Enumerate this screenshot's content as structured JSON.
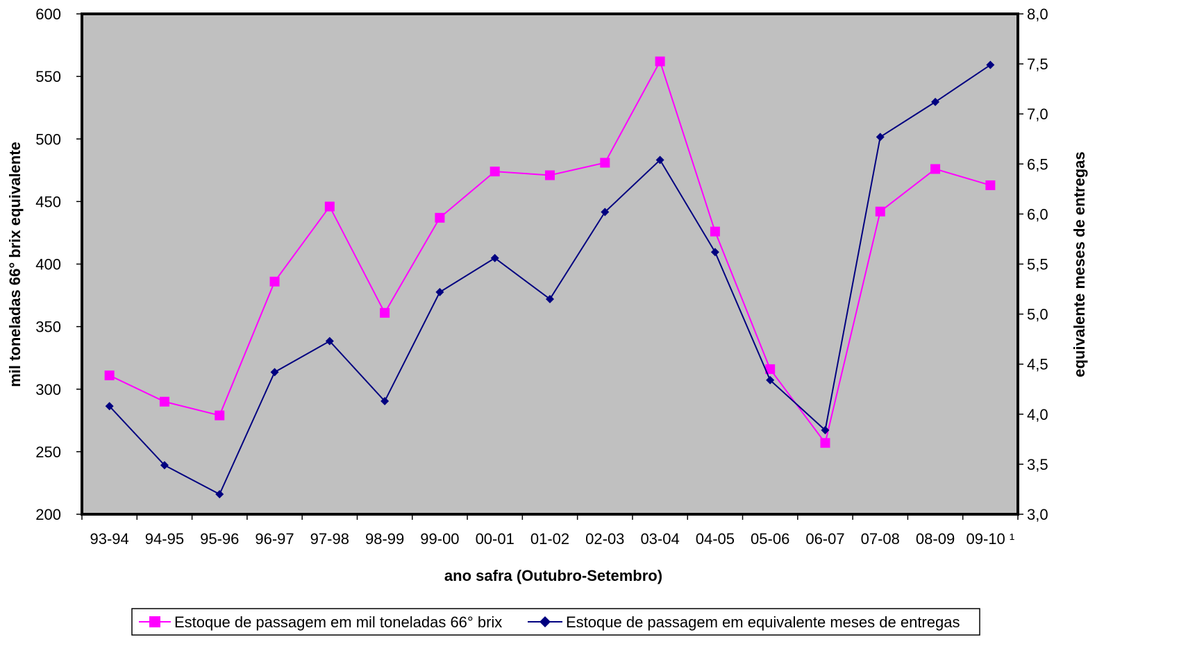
{
  "chart_data": {
    "type": "line",
    "title": "",
    "xlabel": "ano safra (Outubro-Setembro)",
    "ylabel": "mil toneladas 66° brix equivalente",
    "y2label": "equivalente meses de entregas",
    "categories": [
      "93-94",
      "94-95",
      "95-96",
      "96-97",
      "97-98",
      "98-99",
      "99-00",
      "00-01",
      "01-02",
      "02-03",
      "03-04",
      "04-05",
      "05-06",
      "06-07",
      "07-08",
      "08-09",
      "09-10 ¹"
    ],
    "ylim": [
      200,
      600
    ],
    "yticks": [
      200,
      250,
      300,
      350,
      400,
      450,
      500,
      550,
      600
    ],
    "y2lim": [
      3.0,
      8.0
    ],
    "y2ticks": [
      "3,0",
      "3,5",
      "4,0",
      "4,5",
      "5,0",
      "5,5",
      "6,0",
      "6,5",
      "7,0",
      "7,5",
      "8,0"
    ],
    "grid": false,
    "plot_background": "#c0c0c0",
    "legend_position": "bottom",
    "series": [
      {
        "name": "Estoque de passagem em mil toneladas 66° brix",
        "axis": "left",
        "color": "#ff00ff",
        "marker": "square",
        "values": [
          311,
          290,
          279,
          386,
          446,
          361,
          437,
          474,
          471,
          481,
          562,
          426,
          316,
          257,
          442,
          476,
          463
        ]
      },
      {
        "name": "Estoque de passagem em equivalente meses de entregas",
        "axis": "right",
        "color": "#000080",
        "marker": "diamond",
        "values": [
          4.08,
          3.49,
          3.2,
          4.42,
          4.73,
          4.13,
          5.22,
          5.56,
          5.15,
          6.02,
          6.54,
          5.62,
          4.34,
          3.84,
          6.77,
          7.12,
          7.49
        ]
      }
    ]
  }
}
